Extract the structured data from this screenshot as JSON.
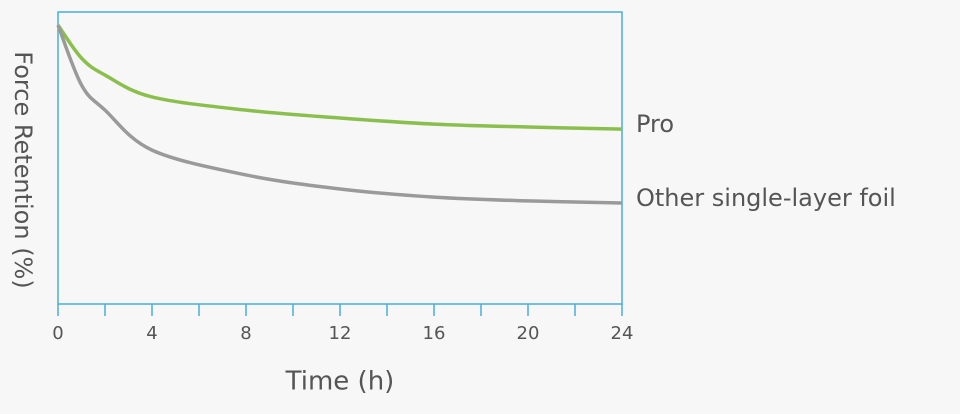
{
  "chart_data": {
    "type": "line",
    "xlabel": "Time (h)",
    "ylabel": "Force Retention (%)",
    "x": [
      0,
      1,
      2,
      4,
      8,
      12,
      16,
      20,
      24
    ],
    "series": [
      {
        "name": "Pro",
        "color": "#8bbf4d",
        "values": [
          95.5,
          84.2,
          78.4,
          70.9,
          66.4,
          63.7,
          61.6,
          60.6,
          59.9
        ]
      },
      {
        "name": "Other single-layer foil",
        "color": "#9a9a9a",
        "values": [
          95.5,
          75.0,
          66.4,
          52.7,
          44.2,
          39.4,
          36.6,
          35.3,
          34.6
        ]
      }
    ],
    "xlim": [
      0,
      24
    ],
    "xticks": [
      0,
      4,
      8,
      12,
      16,
      20,
      24
    ],
    "xminor_ticks": [
      2,
      6,
      10,
      14,
      18,
      22
    ],
    "ylim": [
      0,
      100
    ],
    "frame_color": "#4aaed6"
  }
}
